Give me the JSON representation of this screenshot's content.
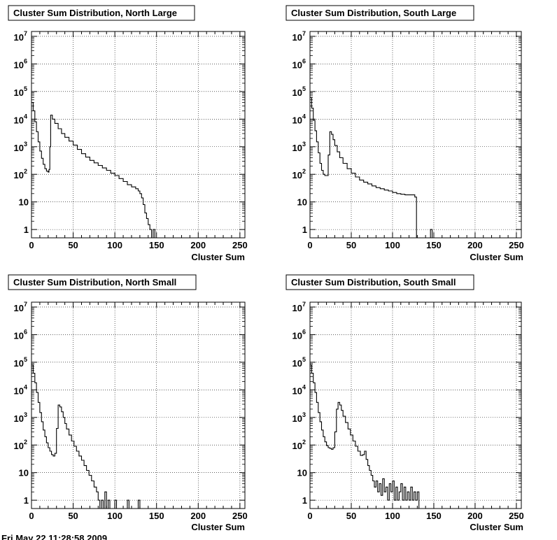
{
  "footer": {
    "text": "Fri May 22 11:28:58 2009"
  },
  "chart_data": [
    {
      "type": "line",
      "title": "Cluster Sum Distribution, North Large",
      "xlabel": "Cluster Sum",
      "ylabel": "",
      "xlim": [
        0,
        256
      ],
      "ylim": [
        0.5,
        10000000
      ],
      "yscale": "log",
      "grid": true,
      "x_ticks": [
        0,
        50,
        100,
        150,
        200,
        250
      ],
      "y_ticks": [
        1,
        10,
        100,
        1000,
        10000,
        100000,
        1000000,
        10000000
      ],
      "series": [
        {
          "points": [
            [
              0,
              40000
            ],
            [
              2,
              20000
            ],
            [
              4,
              8000
            ],
            [
              6,
              3500
            ],
            [
              8,
              1500
            ],
            [
              10,
              700
            ],
            [
              12,
              380
            ],
            [
              14,
              230
            ],
            [
              16,
              160
            ],
            [
              18,
              130
            ],
            [
              20,
              120
            ],
            [
              21,
              150
            ],
            [
              22,
              1000
            ],
            [
              23,
              14000
            ],
            [
              25,
              10000
            ],
            [
              28,
              7000
            ],
            [
              32,
              4500
            ],
            [
              36,
              3000
            ],
            [
              40,
              2200
            ],
            [
              45,
              1600
            ],
            [
              50,
              1150
            ],
            [
              55,
              800
            ],
            [
              60,
              560
            ],
            [
              65,
              420
            ],
            [
              70,
              320
            ],
            [
              75,
              260
            ],
            [
              80,
              210
            ],
            [
              85,
              170
            ],
            [
              90,
              140
            ],
            [
              95,
              110
            ],
            [
              100,
              90
            ],
            [
              105,
              70
            ],
            [
              110,
              55
            ],
            [
              115,
              42
            ],
            [
              120,
              35
            ],
            [
              125,
              30
            ],
            [
              128,
              25
            ],
            [
              130,
              20
            ],
            [
              132,
              14
            ],
            [
              134,
              8
            ],
            [
              136,
              4
            ],
            [
              138,
              2.5
            ],
            [
              140,
              1.5
            ],
            [
              142,
              1
            ],
            [
              144,
              0.5
            ],
            [
              146,
              1
            ],
            [
              148,
              0.5
            ]
          ]
        }
      ]
    },
    {
      "type": "line",
      "title": "Cluster Sum Distribution, South Large",
      "xlabel": "Cluster Sum",
      "ylabel": "",
      "xlim": [
        0,
        256
      ],
      "ylim": [
        0.5,
        10000000
      ],
      "yscale": "log",
      "grid": true,
      "x_ticks": [
        0,
        50,
        100,
        150,
        200,
        250
      ],
      "y_ticks": [
        1,
        10,
        100,
        1000,
        10000,
        100000,
        1000000,
        10000000
      ],
      "series": [
        {
          "points": [
            [
              0,
              60000
            ],
            [
              2,
              25000
            ],
            [
              4,
              9000
            ],
            [
              6,
              3800
            ],
            [
              8,
              1500
            ],
            [
              10,
              600
            ],
            [
              12,
              250
            ],
            [
              14,
              140
            ],
            [
              16,
              100
            ],
            [
              18,
              90
            ],
            [
              20,
              90
            ],
            [
              22,
              500
            ],
            [
              24,
              3500
            ],
            [
              26,
              2800
            ],
            [
              28,
              1800
            ],
            [
              30,
              1100
            ],
            [
              33,
              650
            ],
            [
              36,
              400
            ],
            [
              40,
              250
            ],
            [
              45,
              160
            ],
            [
              50,
              110
            ],
            [
              55,
              80
            ],
            [
              60,
              62
            ],
            [
              65,
              52
            ],
            [
              70,
              45
            ],
            [
              75,
              38
            ],
            [
              80,
              33
            ],
            [
              85,
              30
            ],
            [
              90,
              27
            ],
            [
              95,
              25
            ],
            [
              100,
              22
            ],
            [
              105,
              20
            ],
            [
              110,
              19
            ],
            [
              115,
              18
            ],
            [
              120,
              18
            ],
            [
              124,
              18
            ],
            [
              127,
              15
            ],
            [
              129,
              0.5
            ],
            [
              145,
              0.5
            ],
            [
              146,
              1
            ],
            [
              148,
              0.5
            ]
          ]
        }
      ]
    },
    {
      "type": "line",
      "title": "Cluster Sum Distribution, North Small",
      "xlabel": "Cluster Sum",
      "ylabel": "",
      "xlim": [
        0,
        256
      ],
      "ylim": [
        0.5,
        10000000
      ],
      "yscale": "log",
      "grid": true,
      "x_ticks": [
        0,
        50,
        100,
        150,
        200,
        250
      ],
      "y_ticks": [
        1,
        10,
        100,
        1000,
        10000,
        100000,
        1000000,
        10000000
      ],
      "series": [
        {
          "points": [
            [
              0,
              80000
            ],
            [
              2,
              40000
            ],
            [
              4,
              18000
            ],
            [
              6,
              8000
            ],
            [
              8,
              3500
            ],
            [
              10,
              1500
            ],
            [
              12,
              700
            ],
            [
              14,
              350
            ],
            [
              16,
              200
            ],
            [
              18,
              120
            ],
            [
              20,
              80
            ],
            [
              22,
              60
            ],
            [
              24,
              45
            ],
            [
              26,
              40
            ],
            [
              28,
              50
            ],
            [
              30,
              400
            ],
            [
              32,
              2800
            ],
            [
              34,
              2400
            ],
            [
              36,
              1600
            ],
            [
              38,
              1000
            ],
            [
              40,
              600
            ],
            [
              42,
              380
            ],
            [
              45,
              230
            ],
            [
              48,
              140
            ],
            [
              51,
              90
            ],
            [
              54,
              60
            ],
            [
              57,
              40
            ],
            [
              60,
              28
            ],
            [
              63,
              18
            ],
            [
              66,
              12
            ],
            [
              69,
              8
            ],
            [
              72,
              5
            ],
            [
              75,
              3
            ],
            [
              78,
              2
            ],
            [
              80,
              1
            ],
            [
              82,
              0.5
            ],
            [
              84,
              1
            ],
            [
              86,
              0.5
            ],
            [
              88,
              2
            ],
            [
              90,
              0.5
            ],
            [
              92,
              1
            ],
            [
              94,
              0.5
            ],
            [
              100,
              1
            ],
            [
              102,
              0.5
            ],
            [
              115,
              1
            ],
            [
              117,
              0.5
            ],
            [
              128,
              1
            ],
            [
              130,
              0.5
            ]
          ]
        }
      ]
    },
    {
      "type": "line",
      "title": "Cluster Sum Distribution, South Small",
      "xlabel": "Cluster Sum",
      "ylabel": "",
      "xlim": [
        0,
        256
      ],
      "ylim": [
        0.5,
        10000000
      ],
      "yscale": "log",
      "grid": true,
      "x_ticks": [
        0,
        50,
        100,
        150,
        200,
        250
      ],
      "y_ticks": [
        1,
        10,
        100,
        1000,
        10000,
        100000,
        1000000,
        10000000
      ],
      "series": [
        {
          "points": [
            [
              0,
              80000
            ],
            [
              2,
              40000
            ],
            [
              4,
              18000
            ],
            [
              6,
              8000
            ],
            [
              8,
              3500
            ],
            [
              10,
              1500
            ],
            [
              12,
              700
            ],
            [
              14,
              350
            ],
            [
              16,
              200
            ],
            [
              18,
              130
            ],
            [
              20,
              95
            ],
            [
              22,
              80
            ],
            [
              24,
              75
            ],
            [
              26,
              70
            ],
            [
              28,
              80
            ],
            [
              30,
              300
            ],
            [
              32,
              2000
            ],
            [
              34,
              3500
            ],
            [
              36,
              2800
            ],
            [
              38,
              1800
            ],
            [
              40,
              1100
            ],
            [
              43,
              650
            ],
            [
              46,
              380
            ],
            [
              49,
              230
            ],
            [
              52,
              140
            ],
            [
              55,
              90
            ],
            [
              58,
              60
            ],
            [
              61,
              42
            ],
            [
              64,
              45
            ],
            [
              66,
              60
            ],
            [
              68,
              30
            ],
            [
              70,
              18
            ],
            [
              72,
              12
            ],
            [
              74,
              8
            ],
            [
              76,
              5
            ],
            [
              78,
              3
            ],
            [
              80,
              5
            ],
            [
              82,
              2
            ],
            [
              84,
              4
            ],
            [
              86,
              1.5
            ],
            [
              88,
              6
            ],
            [
              90,
              2
            ],
            [
              92,
              3
            ],
            [
              94,
              1
            ],
            [
              96,
              4
            ],
            [
              98,
              2
            ],
            [
              100,
              5
            ],
            [
              102,
              1
            ],
            [
              104,
              3
            ],
            [
              106,
              1
            ],
            [
              108,
              2
            ],
            [
              110,
              4
            ],
            [
              112,
              1
            ],
            [
              114,
              3
            ],
            [
              116,
              1
            ],
            [
              118,
              2
            ],
            [
              120,
              1
            ],
            [
              122,
              3
            ],
            [
              124,
              1
            ],
            [
              126,
              2
            ],
            [
              128,
              1
            ],
            [
              130,
              2
            ],
            [
              132,
              0.5
            ]
          ]
        }
      ]
    }
  ]
}
